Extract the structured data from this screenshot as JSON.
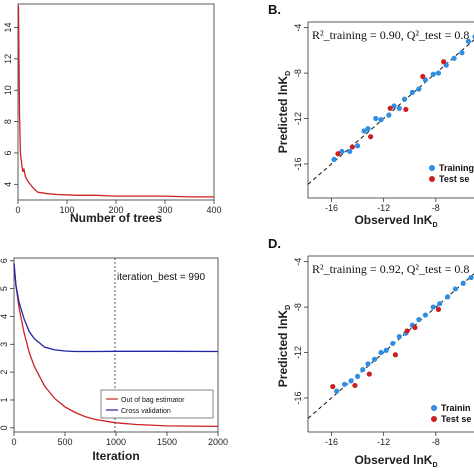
{
  "chart_data": [
    {
      "type": "line",
      "xlabel": "Number of trees",
      "xticks": [
        0,
        100,
        200,
        300,
        400
      ],
      "yticks": [
        4,
        6,
        8,
        10,
        12,
        14
      ],
      "xlim": [
        0,
        400
      ],
      "ylim": [
        3,
        15.5
      ],
      "series": [
        {
          "color": "#cc2222",
          "x": [
            1,
            3,
            5,
            8,
            10,
            12,
            15,
            20,
            25,
            30,
            40,
            60,
            80,
            120,
            160,
            200,
            250,
            300,
            350,
            400
          ],
          "y": [
            15.4,
            8.5,
            6.0,
            5.2,
            4.8,
            5.0,
            4.5,
            4.2,
            4.0,
            3.8,
            3.5,
            3.4,
            3.35,
            3.3,
            3.3,
            3.25,
            3.25,
            3.25,
            3.2,
            3.2
          ]
        }
      ]
    },
    {
      "type": "scatter",
      "panel_label": "B.",
      "note": "R²_training = 0.90, Q²_test = 0.8",
      "xlabel": "Observed lnK",
      "xlabel_sub": "D",
      "ylabel": "Predicted lnK",
      "ylabel_sub": "D",
      "xticks": [
        -16,
        -12,
        -8
      ],
      "yticks": [
        -4,
        -8,
        -12,
        -16
      ],
      "xlim": [
        -17.8,
        -4
      ],
      "ylim": [
        -19,
        -3.5
      ],
      "legend": [
        "Training",
        "Test se"
      ],
      "legend_colors": [
        "#2f8de4",
        "#cc1f1f"
      ],
      "series": [
        {
          "name": "Training",
          "color": "#2f8de4",
          "x": [
            -15.8,
            -15.2,
            -14.6,
            -14.0,
            -13.5,
            -13.2,
            -12.6,
            -12.2,
            -11.6,
            -11.2,
            -10.8,
            -10.4,
            -9.8,
            -9.3,
            -8.8,
            -8.2,
            -7.8,
            -7.2,
            -6.6,
            -6.0,
            -5.5,
            -5.0
          ],
          "y": [
            -15.6,
            -14.9,
            -14.9,
            -14.4,
            -13.1,
            -12.9,
            -12.0,
            -12.1,
            -11.7,
            -10.9,
            -11.1,
            -10.3,
            -9.7,
            -9.4,
            -8.6,
            -8.1,
            -8.0,
            -7.3,
            -6.7,
            -6.2,
            -5.2,
            -4.8
          ]
        },
        {
          "name": "Test se",
          "color": "#cc1f1f",
          "x": [
            -15.5,
            -14.4,
            -13.0,
            -11.5,
            -10.3,
            -9.0,
            -7.4
          ],
          "y": [
            -15.1,
            -14.5,
            -13.6,
            -11.1,
            -11.2,
            -8.3,
            -7.0
          ]
        }
      ]
    },
    {
      "type": "line",
      "xlabel": "Iteration",
      "xticks": [
        0,
        500,
        1000,
        1500,
        2000
      ],
      "yticks": [
        0,
        1,
        2,
        3,
        4,
        5,
        6
      ],
      "xlim": [
        0,
        2000
      ],
      "ylim": [
        -0.15,
        6.1
      ],
      "vline": 990,
      "annotation": "iteration_best = 990",
      "legend": [
        "Out of bag estimator",
        "Cross validation"
      ],
      "series": [
        {
          "name": "Out of bag estimator",
          "color": "#cc2222",
          "x": [
            0,
            20,
            50,
            100,
            150,
            200,
            300,
            400,
            500,
            600,
            700,
            800,
            1000,
            1200,
            1500,
            2000
          ],
          "y": [
            5.9,
            5.1,
            4.3,
            3.4,
            2.7,
            2.2,
            1.5,
            1.05,
            0.75,
            0.55,
            0.4,
            0.3,
            0.18,
            0.12,
            0.07,
            0.05
          ]
        },
        {
          "name": "Cross validation",
          "color": "#2222aa",
          "x": [
            0,
            20,
            50,
            100,
            150,
            200,
            300,
            400,
            500,
            600,
            700,
            800,
            1000,
            1200,
            1500,
            2000
          ],
          "y": [
            5.9,
            5.1,
            4.5,
            3.9,
            3.45,
            3.2,
            2.9,
            2.8,
            2.76,
            2.74,
            2.74,
            2.74,
            2.75,
            2.75,
            2.75,
            2.74
          ]
        }
      ]
    },
    {
      "type": "scatter",
      "panel_label": "D.",
      "note": "R²_training = 0.92, Q²_test = 0.8",
      "xlabel": "Observed lnK",
      "xlabel_sub": "D",
      "ylabel": "Predicted lnK",
      "ylabel_sub": "D",
      "xticks": [
        -16,
        -12,
        -8
      ],
      "yticks": [
        -4,
        -8,
        -12,
        -16
      ],
      "xlim": [
        -17.8,
        -4
      ],
      "ylim": [
        -19,
        -3.5
      ],
      "legend": [
        "Trainin",
        "Test se"
      ],
      "legend_colors": [
        "#2f8de4",
        "#cc1f1f"
      ],
      "series": [
        {
          "name": "Trainin",
          "color": "#2f8de4",
          "x": [
            -15.6,
            -15.0,
            -14.5,
            -14.0,
            -13.6,
            -13.2,
            -12.7,
            -12.2,
            -11.8,
            -11.3,
            -10.8,
            -10.3,
            -9.8,
            -9.3,
            -8.8,
            -8.2,
            -7.7,
            -7.1,
            -6.5,
            -5.9,
            -5.3
          ],
          "y": [
            -15.4,
            -14.8,
            -14.5,
            -14.1,
            -13.5,
            -13.0,
            -12.6,
            -12.0,
            -11.8,
            -11.2,
            -10.6,
            -10.3,
            -9.6,
            -9.1,
            -8.7,
            -8.0,
            -7.7,
            -7.1,
            -6.4,
            -5.9,
            -5.4
          ]
        },
        {
          "name": "Test se",
          "color": "#cc1f1f",
          "x": [
            -15.9,
            -14.2,
            -13.1,
            -11.1,
            -10.2,
            -9.6,
            -7.8
          ],
          "y": [
            -15.0,
            -14.9,
            -13.9,
            -12.2,
            -10.1,
            -9.8,
            -8.2
          ]
        }
      ]
    }
  ]
}
